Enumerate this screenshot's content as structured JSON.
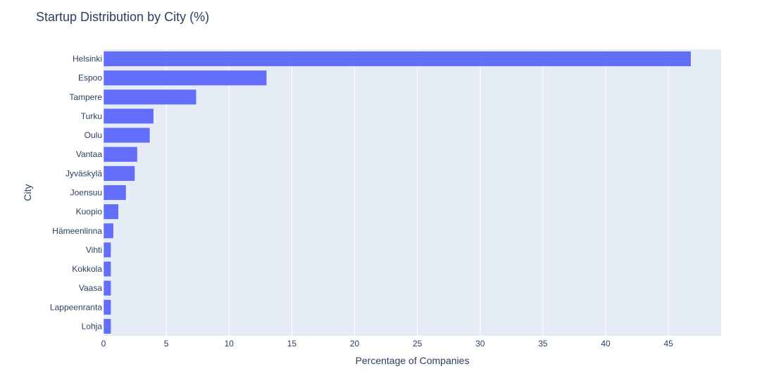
{
  "chart_data": {
    "type": "bar",
    "orientation": "horizontal",
    "title": "Startup Distribution by City (%)",
    "xlabel": "Percentage of Companies",
    "ylabel": "City",
    "categories": [
      "Helsinki",
      "Espoo",
      "Tampere",
      "Turku",
      "Oulu",
      "Vantaa",
      "Jyväskylä",
      "Joensuu",
      "Kuopio",
      "Hämeenlinna",
      "Vihti",
      "Kokkola",
      "Vaasa",
      "Lappeenranta",
      "Lohja"
    ],
    "values": [
      46.8,
      13.0,
      7.4,
      4.0,
      3.7,
      2.7,
      2.5,
      1.8,
      1.2,
      0.8,
      0.6,
      0.6,
      0.6,
      0.6,
      0.6
    ],
    "xlim": [
      0,
      49.2
    ],
    "xticks": [
      "0",
      "5",
      "10",
      "15",
      "20",
      "25",
      "30",
      "35",
      "40",
      "45"
    ],
    "grid": true,
    "legend": "none",
    "colors": {
      "bar": "#636efa",
      "plot_bg": "#e5ecf6",
      "grid": "#ffffff",
      "text": "#2a3f5f"
    }
  }
}
